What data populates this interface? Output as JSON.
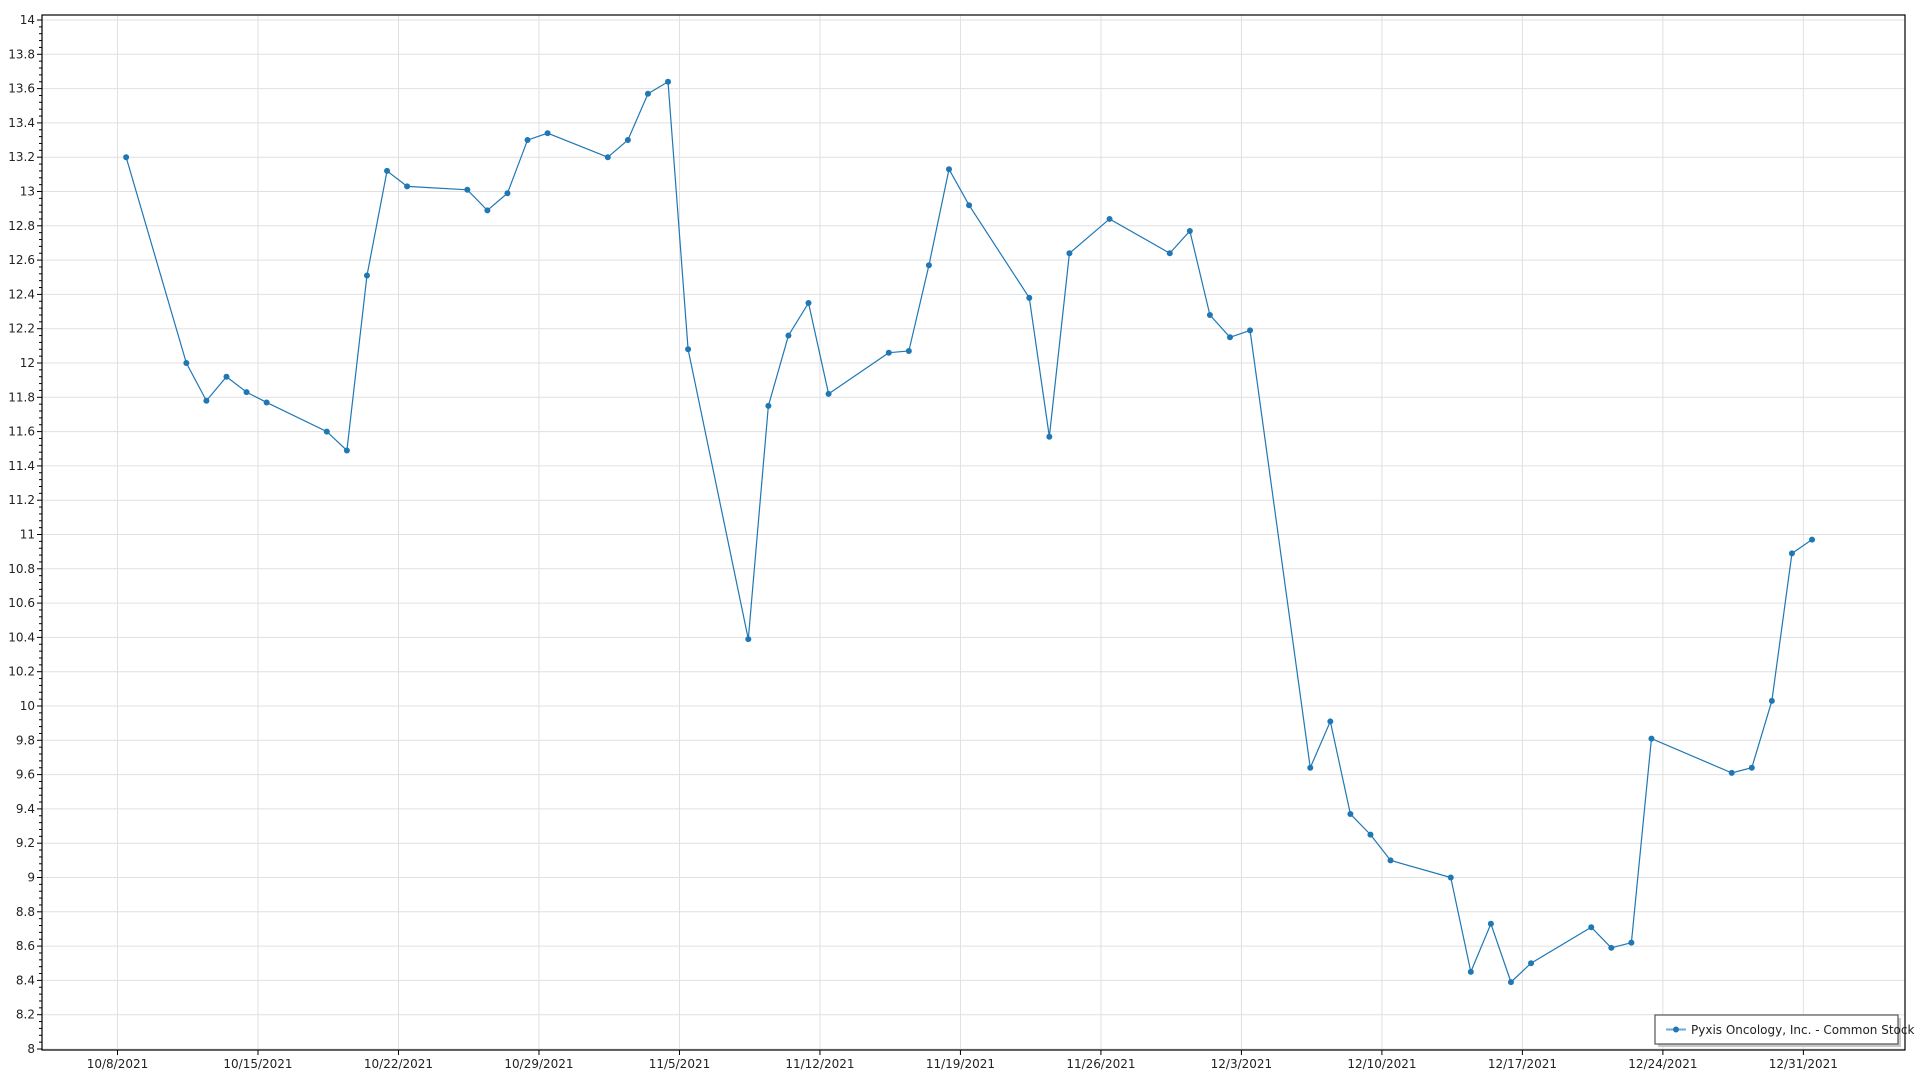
{
  "chart_data": {
    "type": "line",
    "title": "",
    "xlabel": "",
    "ylabel": "",
    "grid": true,
    "legend_placement": "bottom-right",
    "ylim": [
      8,
      14
    ],
    "y_ticks": [
      "8",
      "8.2",
      "8.4",
      "8.6",
      "8.8",
      "9",
      "9.2",
      "9.4",
      "9.6",
      "9.8",
      "10",
      "10.2",
      "10.4",
      "10.6",
      "10.8",
      "11",
      "11.2",
      "11.4",
      "11.6",
      "11.8",
      "12",
      "12.2",
      "12.4",
      "12.6",
      "12.8",
      "13",
      "13.2",
      "13.4",
      "13.6",
      "13.8",
      "14"
    ],
    "x_ticks": [
      "10/8/2021",
      "10/15/2021",
      "10/22/2021",
      "10/29/2021",
      "11/5/2021",
      "11/12/2021",
      "11/19/2021",
      "11/26/2021",
      "12/3/2021",
      "12/10/2021",
      "12/17/2021",
      "12/24/2021",
      "12/31/2021"
    ],
    "colors": {
      "series": "#1f77b4",
      "grid": "#e0e0e0"
    },
    "series": [
      {
        "name": "Pyxis Oncology, Inc. - Common Stock",
        "marker": "circle",
        "points": [
          [
            "2021-10-08",
            13.2
          ],
          [
            "2021-10-11",
            12.0
          ],
          [
            "2021-10-12",
            11.78
          ],
          [
            "2021-10-13",
            11.92
          ],
          [
            "2021-10-14",
            11.83
          ],
          [
            "2021-10-15",
            11.77
          ],
          [
            "2021-10-18",
            11.6
          ],
          [
            "2021-10-19",
            11.49
          ],
          [
            "2021-10-20",
            12.51
          ],
          [
            "2021-10-21",
            13.12
          ],
          [
            "2021-10-22",
            13.03
          ],
          [
            "2021-10-25",
            13.01
          ],
          [
            "2021-10-26",
            12.89
          ],
          [
            "2021-10-27",
            12.99
          ],
          [
            "2021-10-28",
            13.3
          ],
          [
            "2021-10-29",
            13.34
          ],
          [
            "2021-11-01",
            13.2
          ],
          [
            "2021-11-02",
            13.3
          ],
          [
            "2021-11-03",
            13.57
          ],
          [
            "2021-11-04",
            13.64
          ],
          [
            "2021-11-05",
            12.08
          ],
          [
            "2021-11-08",
            10.39
          ],
          [
            "2021-11-09",
            11.75
          ],
          [
            "2021-11-10",
            12.16
          ],
          [
            "2021-11-11",
            12.35
          ],
          [
            "2021-11-12",
            11.82
          ],
          [
            "2021-11-15",
            12.06
          ],
          [
            "2021-11-16",
            12.07
          ],
          [
            "2021-11-17",
            12.57
          ],
          [
            "2021-11-18",
            13.13
          ],
          [
            "2021-11-19",
            12.92
          ],
          [
            "2021-11-22",
            12.38
          ],
          [
            "2021-11-23",
            11.57
          ],
          [
            "2021-11-24",
            12.64
          ],
          [
            "2021-11-26",
            12.84
          ],
          [
            "2021-11-29",
            12.64
          ],
          [
            "2021-11-30",
            12.77
          ],
          [
            "2021-12-01",
            12.28
          ],
          [
            "2021-12-02",
            12.15
          ],
          [
            "2021-12-03",
            12.19
          ],
          [
            "2021-12-06",
            9.64
          ],
          [
            "2021-12-07",
            9.91
          ],
          [
            "2021-12-08",
            9.37
          ],
          [
            "2021-12-09",
            9.25
          ],
          [
            "2021-12-10",
            9.1
          ],
          [
            "2021-12-13",
            9.0
          ],
          [
            "2021-12-14",
            8.45
          ],
          [
            "2021-12-15",
            8.73
          ],
          [
            "2021-12-16",
            8.39
          ],
          [
            "2021-12-17",
            8.5
          ],
          [
            "2021-12-20",
            8.71
          ],
          [
            "2021-12-21",
            8.59
          ],
          [
            "2021-12-22",
            8.62
          ],
          [
            "2021-12-23",
            9.81
          ],
          [
            "2021-12-27",
            9.61
          ],
          [
            "2021-12-28",
            9.64
          ],
          [
            "2021-12-29",
            10.03
          ],
          [
            "2021-12-30",
            10.89
          ],
          [
            "2021-12-31",
            10.97
          ]
        ]
      }
    ]
  }
}
